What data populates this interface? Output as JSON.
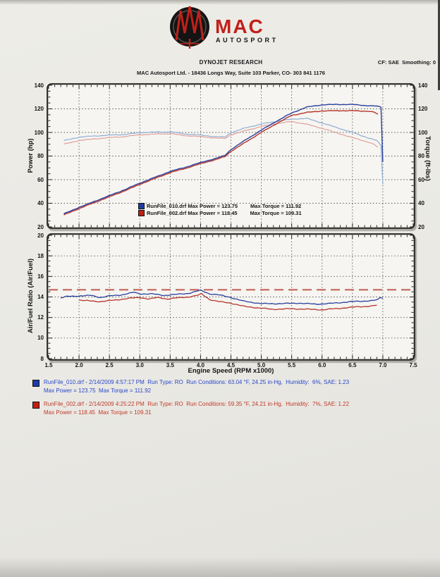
{
  "logo": {
    "brand": "MAC",
    "subbrand": "AUTOSPORT",
    "accent": "#c2201a",
    "mark_color": "#141414"
  },
  "header": {
    "title": "DYNOJET RESEARCH",
    "subtitle": "MAC Autosport Ltd. - 18436 Longs Way, Suite 103 Parker, CO- 303 841 1176",
    "settings": "CF: SAE  Smoothing: 0"
  },
  "colors": {
    "page_bg": "#eae9e4",
    "plot_bg": "#f6f5f1",
    "frame": "#2b2b28",
    "grid": "#3c3c3c",
    "run1_power": "#2a3f9d",
    "run1_torque": "#8fadd6",
    "run2_power": "#b5352c",
    "run2_torque": "#dfa09a",
    "afr_target": "#c4655a",
    "footer_blue": "#2848c8",
    "footer_red": "#c03a28"
  },
  "chart_data": [
    {
      "type": "line",
      "title": "",
      "ylabel_left": "Power (hp)",
      "ylabel_right": "Torque (ft-lbs)",
      "ylim": [
        20,
        140
      ],
      "yticks": [
        20,
        40,
        60,
        80,
        100,
        120,
        140
      ],
      "y_minor_step": 5,
      "xlim": [
        1.5,
        7.5
      ],
      "x_grid_step": 0.5,
      "x_minor_step": 0.1,
      "grid": "dotted",
      "legend_position": "inside-bottom-center",
      "legend": [
        {
          "swatch": "#1e3ca8",
          "label": "RunFile_010.drf Max Power = 123.75",
          "label2": "Max Torque = 111.92"
        },
        {
          "swatch": "#c21f14",
          "label": "RunFile_002.drf Max Power = 118.45",
          "label2": "Max Torque = 109.31"
        }
      ],
      "series": [
        {
          "name": "RunFile_010 Torque (ft-lbs)",
          "color": "#8fadd6",
          "width": 1.2,
          "wiggle": 0.35,
          "points": [
            [
              1.75,
              93
            ],
            [
              2.0,
              96
            ],
            [
              2.25,
              97
            ],
            [
              2.5,
              97.7
            ],
            [
              2.75,
              98.3
            ],
            [
              3.0,
              99.8
            ],
            [
              3.25,
              100.3
            ],
            [
              3.5,
              100.5
            ],
            [
              3.75,
              98.7
            ],
            [
              4.0,
              97.8
            ],
            [
              4.25,
              96.4
            ],
            [
              4.4,
              96.1
            ],
            [
              4.5,
              99.8
            ],
            [
              4.75,
              104
            ],
            [
              5.0,
              107.1
            ],
            [
              5.25,
              109.5
            ],
            [
              5.5,
              111.3
            ],
            [
              5.75,
              111.92
            ],
            [
              6.0,
              108
            ],
            [
              6.25,
              104
            ],
            [
              6.5,
              100
            ],
            [
              6.75,
              95.5
            ],
            [
              6.9,
              93.1
            ],
            [
              6.97,
              89
            ],
            [
              7.0,
              56
            ]
          ]
        },
        {
          "name": "RunFile_002 Torque (ft-lbs)",
          "color": "#dfa09a",
          "width": 1.2,
          "wiggle": 0.35,
          "points": [
            [
              1.75,
              90
            ],
            [
              2.0,
              93.2
            ],
            [
              2.25,
              94.5
            ],
            [
              2.5,
              95.6
            ],
            [
              2.75,
              96.5
            ],
            [
              3.0,
              98
            ],
            [
              3.25,
              98.6
            ],
            [
              3.5,
              99
            ],
            [
              3.75,
              97.3
            ],
            [
              4.0,
              96.5
            ],
            [
              4.25,
              95.2
            ],
            [
              4.4,
              94.9
            ],
            [
              4.5,
              98
            ],
            [
              4.75,
              101.7
            ],
            [
              5.0,
              105
            ],
            [
              5.25,
              107.5
            ],
            [
              5.5,
              109.31
            ],
            [
              5.75,
              106.9
            ],
            [
              6.0,
              103.5
            ],
            [
              6.25,
              99.5
            ],
            [
              6.5,
              95.6
            ],
            [
              6.75,
              92
            ],
            [
              6.85,
              90
            ],
            [
              6.92,
              87.5
            ]
          ]
        },
        {
          "name": "RunFile_002 Power (hp)",
          "color": "#b5352c",
          "width": 1.4,
          "wiggle": 0.3,
          "points": [
            [
              1.75,
              30
            ],
            [
              2.0,
              35.5
            ],
            [
              2.25,
              40.5
            ],
            [
              2.5,
              45.5
            ],
            [
              2.75,
              50.5
            ],
            [
              3.0,
              56
            ],
            [
              3.25,
              61
            ],
            [
              3.5,
              66
            ],
            [
              3.75,
              69.5
            ],
            [
              4.0,
              73.5
            ],
            [
              4.25,
              77
            ],
            [
              4.4,
              79.5
            ],
            [
              4.5,
              84
            ],
            [
              4.75,
              92
            ],
            [
              5.0,
              100
            ],
            [
              5.25,
              107.5
            ],
            [
              5.5,
              114.5
            ],
            [
              5.75,
              117
            ],
            [
              6.0,
              118.2
            ],
            [
              6.25,
              118.45
            ],
            [
              6.5,
              118.4
            ],
            [
              6.75,
              118
            ],
            [
              6.85,
              117.3
            ],
            [
              6.92,
              115.5
            ]
          ]
        },
        {
          "name": "RunFile_010 Power (hp)",
          "color": "#2a3f9d",
          "width": 1.4,
          "wiggle": 0.3,
          "points": [
            [
              1.75,
              31
            ],
            [
              2.0,
              36.5
            ],
            [
              2.25,
              41.5
            ],
            [
              2.5,
              46.5
            ],
            [
              2.75,
              51.5
            ],
            [
              3.0,
              57
            ],
            [
              3.25,
              62
            ],
            [
              3.5,
              67
            ],
            [
              3.75,
              70.5
            ],
            [
              4.0,
              74.5
            ],
            [
              4.25,
              78
            ],
            [
              4.4,
              80.5
            ],
            [
              4.5,
              85.5
            ],
            [
              4.75,
              94
            ],
            [
              5.0,
              102
            ],
            [
              5.25,
              109.5
            ],
            [
              5.5,
              116.5
            ],
            [
              5.75,
              121.5
            ],
            [
              6.0,
              123.4
            ],
            [
              6.25,
              123.75
            ],
            [
              6.5,
              123.7
            ],
            [
              6.75,
              122.7
            ],
            [
              6.9,
              122.3
            ],
            [
              6.97,
              121.5
            ],
            [
              7.0,
              75
            ]
          ]
        }
      ]
    },
    {
      "type": "line",
      "title": "",
      "ylabel_left": "Air/Fuel Ratio (Air/Fuel)",
      "xlabel": "Engine Speed (RPM x1000)",
      "ylim": [
        8,
        20
      ],
      "yticks": [
        8,
        10,
        12,
        14,
        16,
        18,
        20
      ],
      "y_minor_step": 0.5,
      "xlim": [
        1.5,
        7.5
      ],
      "x_grid_step": 0.5,
      "x_minor_step": 0.1,
      "grid": "dotted",
      "xticks": [
        {
          "v": 1.5,
          "label": "1.5"
        },
        {
          "v": 2.0,
          "label": "2.0"
        },
        {
          "v": 2.5,
          "label": "2.5"
        },
        {
          "v": 3.0,
          "label": "3.0"
        },
        {
          "v": 3.5,
          "label": "3.5"
        },
        {
          "v": 4.0,
          "label": "4.0"
        },
        {
          "v": 4.5,
          "label": "4.5"
        },
        {
          "v": 5.0,
          "label": "5.0"
        },
        {
          "v": 5.5,
          "label": "5.5"
        },
        {
          "v": 6.0,
          "label": "6.0"
        },
        {
          "v": 6.5,
          "label": "6.5"
        },
        {
          "v": 7.0,
          "label": "7.0"
        },
        {
          "v": 7.5,
          "label": "7.5"
        }
      ],
      "reference_line": {
        "y": 14.7,
        "color": "#c4655a",
        "style": "dashed"
      },
      "series": [
        {
          "name": "RunFile_010 AFR",
          "color": "#2a3f9d",
          "width": 1.3,
          "wiggle": 0.05,
          "points": [
            [
              1.7,
              13.9
            ],
            [
              1.8,
              14.05
            ],
            [
              2.0,
              14.1
            ],
            [
              2.2,
              14.15
            ],
            [
              2.35,
              13.95
            ],
            [
              2.5,
              14.1
            ],
            [
              2.7,
              14.2
            ],
            [
              2.9,
              14.45
            ],
            [
              3.0,
              14.3
            ],
            [
              3.2,
              14.3
            ],
            [
              3.4,
              14.15
            ],
            [
              3.6,
              14.25
            ],
            [
              3.8,
              14.35
            ],
            [
              4.0,
              14.65
            ],
            [
              4.15,
              14.3
            ],
            [
              4.3,
              14.2
            ],
            [
              4.5,
              13.95
            ],
            [
              4.7,
              13.6
            ],
            [
              5.0,
              13.35
            ],
            [
              5.3,
              13.35
            ],
            [
              5.6,
              13.4
            ],
            [
              5.9,
              13.3
            ],
            [
              6.1,
              13.35
            ],
            [
              6.3,
              13.45
            ],
            [
              6.5,
              13.55
            ],
            [
              6.7,
              13.6
            ],
            [
              6.85,
              13.65
            ],
            [
              6.92,
              13.75
            ],
            [
              6.96,
              13.95
            ],
            [
              7.0,
              13.85
            ]
          ]
        },
        {
          "name": "RunFile_002 AFR",
          "color": "#b5352c",
          "width": 1.3,
          "wiggle": 0.05,
          "points": [
            [
              2.0,
              13.7
            ],
            [
              2.2,
              13.6
            ],
            [
              2.35,
              13.55
            ],
            [
              2.6,
              13.7
            ],
            [
              2.8,
              13.85
            ],
            [
              3.0,
              13.95
            ],
            [
              3.15,
              13.8
            ],
            [
              3.3,
              13.95
            ],
            [
              3.45,
              13.8
            ],
            [
              3.6,
              13.9
            ],
            [
              3.8,
              14.0
            ],
            [
              3.95,
              14.15
            ],
            [
              4.02,
              14.3
            ],
            [
              4.15,
              13.75
            ],
            [
              4.3,
              13.55
            ],
            [
              4.5,
              13.4
            ],
            [
              4.7,
              13.1
            ],
            [
              5.0,
              12.9
            ],
            [
              5.2,
              12.8
            ],
            [
              5.5,
              12.85
            ],
            [
              5.8,
              12.8
            ],
            [
              6.0,
              12.75
            ],
            [
              6.2,
              12.85
            ],
            [
              6.4,
              12.95
            ],
            [
              6.6,
              13.05
            ],
            [
              6.8,
              13.1
            ],
            [
              6.9,
              13.2
            ]
          ]
        }
      ]
    }
  ],
  "footer": {
    "runs": [
      {
        "swatch": "#1e3ca8",
        "line1": "RunFile_010.drf - 2/14/2009 4:57:17 PM  Run Type: RO  Run Conditions: 63.04 °F, 24.25 in-Hg,  Humidity:  6%, SAE: 1.23",
        "line2": "Max Power = 123.75  Max Torque = 111.92"
      },
      {
        "swatch": "#c21f14",
        "line1": "RunFile_002.drf - 2/14/2009 4:25:22 PM  Run Type: RO  Run Conditions: 59.35 °F, 24.21 in-Hg,  Humidity:  7%, SAE: 1.22",
        "line2": "Max Power = 118.45  Max Torque = 109.31"
      }
    ]
  }
}
